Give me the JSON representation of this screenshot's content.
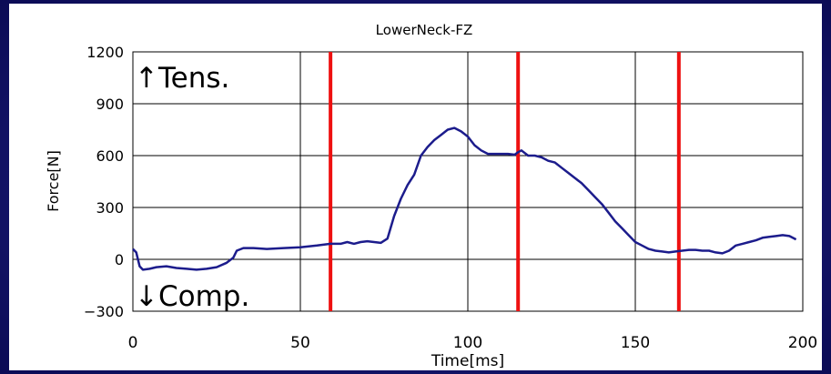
{
  "chart_data": {
    "type": "line",
    "title": "LowerNeck-FZ",
    "xlabel": "Time[ms]",
    "ylabel": "Force[N]",
    "xlim": [
      0,
      200
    ],
    "ylim": [
      -300,
      1200
    ],
    "xticks": [
      0,
      50,
      100,
      150,
      200
    ],
    "yticks": [
      -300,
      0,
      300,
      600,
      900,
      1200
    ],
    "grid": true,
    "annotations": {
      "tension": "↑Tens.",
      "compression": "↓Comp."
    },
    "vlines": {
      "x": [
        59,
        115,
        163
      ],
      "color": "#ee1111"
    },
    "series": [
      {
        "color": "#1c1c8c",
        "x": [
          0,
          1,
          2,
          3,
          5,
          7,
          10,
          13,
          16,
          19,
          22,
          25,
          28,
          30,
          31,
          33,
          36,
          40,
          45,
          50,
          55,
          59,
          62,
          64,
          66,
          68,
          70,
          72,
          74,
          76,
          78,
          80,
          82,
          84,
          86,
          88,
          90,
          92,
          94,
          96,
          98,
          100,
          102,
          104,
          106,
          108,
          110,
          112,
          114,
          115,
          116,
          118,
          120,
          122,
          124,
          126,
          128,
          130,
          132,
          134,
          136,
          138,
          140,
          142,
          144,
          146,
          148,
          150,
          152,
          154,
          156,
          158,
          160,
          162,
          164,
          166,
          168,
          170,
          172,
          174,
          176,
          178,
          180,
          182,
          184,
          186,
          188,
          190,
          192,
          194,
          196,
          198
        ],
        "y": [
          60,
          40,
          -40,
          -60,
          -55,
          -45,
          -40,
          -50,
          -55,
          -60,
          -55,
          -45,
          -20,
          10,
          50,
          65,
          65,
          60,
          65,
          70,
          80,
          90,
          90,
          100,
          90,
          100,
          105,
          100,
          95,
          120,
          250,
          350,
          430,
          490,
          600,
          650,
          690,
          720,
          750,
          760,
          740,
          710,
          660,
          630,
          610,
          610,
          610,
          610,
          605,
          620,
          630,
          600,
          600,
          590,
          570,
          560,
          530,
          500,
          470,
          440,
          400,
          360,
          320,
          270,
          220,
          180,
          140,
          100,
          80,
          60,
          50,
          45,
          40,
          45,
          50,
          55,
          55,
          50,
          50,
          40,
          35,
          50,
          80,
          90,
          100,
          110,
          125,
          130,
          135,
          140,
          135,
          115
        ]
      }
    ]
  }
}
